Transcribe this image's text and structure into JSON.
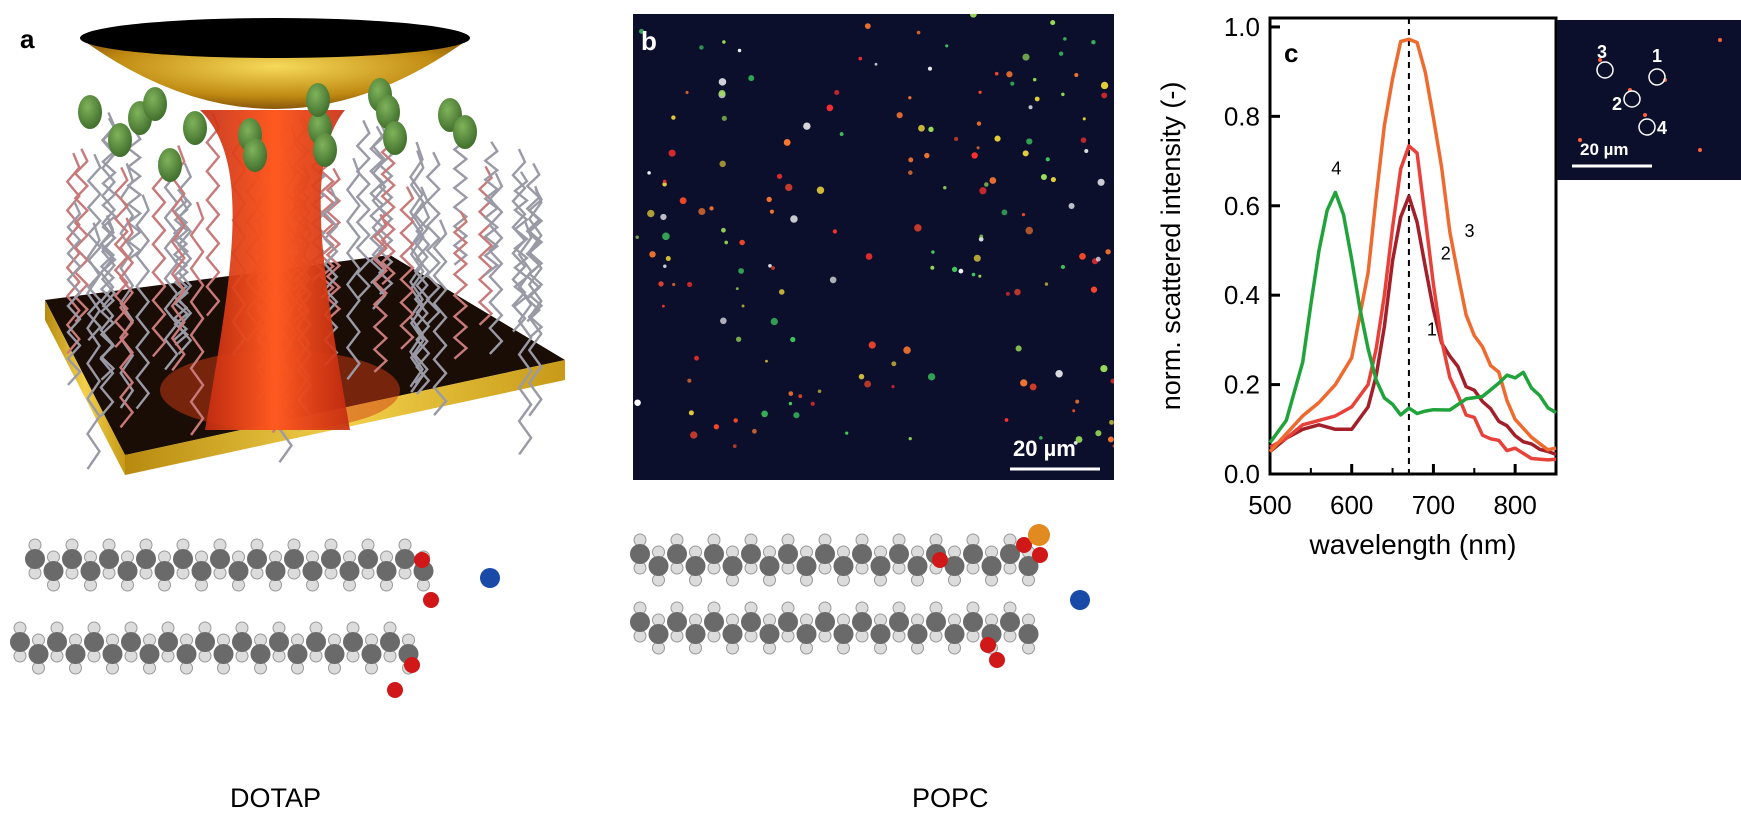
{
  "panels": {
    "a": {
      "label": "a"
    },
    "b": {
      "label": "b",
      "scale_bar": "20 µm"
    },
    "c": {
      "label": "c",
      "inset_scale_bar": "20 µm"
    }
  },
  "molecules": {
    "left_caption": "DOTAP",
    "right_caption": "POPC"
  },
  "colors": {
    "curve_1": "#a3202a",
    "curve_2": "#e8413a",
    "curve_3": "#ef6a2e",
    "curve_4": "#21a33b",
    "gold": "#d9a81a"
  },
  "chart_data": {
    "type": "line",
    "title": "",
    "xlabel": "wavelength (nm)",
    "ylabel": "norm. scattered intensity (-)",
    "xlim": [
      500,
      850
    ],
    "ylim": [
      0,
      1.02
    ],
    "xticks": [
      500,
      600,
      700,
      800
    ],
    "yticks": [
      "0.0",
      "0.2",
      "0.4",
      "0.6",
      "0.8",
      "1.0"
    ],
    "vline_x": 670,
    "series": [
      {
        "name": "1",
        "color": "#a3202a",
        "x": [
          500,
          520,
          540,
          560,
          580,
          600,
          620,
          630,
          640,
          650,
          660,
          670,
          680,
          690,
          700,
          710,
          720,
          730,
          740,
          750,
          760,
          770,
          780,
          790,
          800,
          810,
          820,
          830,
          840,
          850
        ],
        "y": [
          0.05,
          0.08,
          0.1,
          0.11,
          0.1,
          0.1,
          0.15,
          0.22,
          0.33,
          0.47,
          0.58,
          0.62,
          0.56,
          0.47,
          0.36,
          0.3,
          0.26,
          0.24,
          0.2,
          0.18,
          0.17,
          0.14,
          0.12,
          0.11,
          0.08,
          0.08,
          0.06,
          0.06,
          0.05,
          0.04
        ]
      },
      {
        "name": "2",
        "color": "#e8413a",
        "x": [
          500,
          520,
          540,
          560,
          580,
          600,
          620,
          630,
          640,
          650,
          660,
          670,
          680,
          690,
          700,
          710,
          720,
          730,
          740,
          750,
          760,
          770,
          780,
          790,
          800,
          820,
          840,
          850
        ],
        "y": [
          0.06,
          0.08,
          0.11,
          0.12,
          0.13,
          0.15,
          0.2,
          0.28,
          0.4,
          0.55,
          0.68,
          0.74,
          0.71,
          0.58,
          0.42,
          0.3,
          0.22,
          0.17,
          0.14,
          0.12,
          0.09,
          0.08,
          0.07,
          0.06,
          0.05,
          0.04,
          0.03,
          0.03
        ]
      },
      {
        "name": "3",
        "color": "#ef6a2e",
        "x": [
          500,
          520,
          540,
          560,
          580,
          600,
          620,
          630,
          640,
          650,
          660,
          670,
          680,
          690,
          700,
          710,
          720,
          730,
          740,
          750,
          760,
          770,
          780,
          790,
          800,
          820,
          840,
          850
        ],
        "y": [
          0.05,
          0.09,
          0.13,
          0.16,
          0.2,
          0.26,
          0.45,
          0.62,
          0.78,
          0.89,
          0.96,
          0.98,
          0.96,
          0.9,
          0.8,
          0.68,
          0.55,
          0.44,
          0.36,
          0.31,
          0.28,
          0.25,
          0.22,
          0.17,
          0.12,
          0.08,
          0.06,
          0.05
        ]
      },
      {
        "name": "4",
        "color": "#21a33b",
        "x": [
          500,
          520,
          540,
          550,
          560,
          570,
          580,
          590,
          600,
          610,
          620,
          630,
          640,
          650,
          660,
          670,
          680,
          690,
          700,
          720,
          740,
          760,
          780,
          790,
          800,
          810,
          820,
          830,
          840,
          850
        ],
        "y": [
          0.07,
          0.12,
          0.25,
          0.38,
          0.5,
          0.59,
          0.63,
          0.58,
          0.48,
          0.37,
          0.28,
          0.21,
          0.17,
          0.15,
          0.14,
          0.14,
          0.14,
          0.14,
          0.14,
          0.15,
          0.16,
          0.18,
          0.2,
          0.22,
          0.22,
          0.22,
          0.2,
          0.17,
          0.15,
          0.14
        ]
      }
    ]
  }
}
